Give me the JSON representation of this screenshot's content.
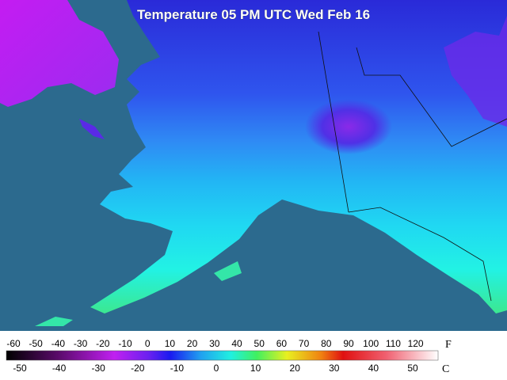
{
  "title": "Temperature 05 PM UTC Wed Feb 16",
  "legend": {
    "fahrenheit": {
      "unit": "F",
      "labels": [
        -60,
        -50,
        -40,
        -30,
        -20,
        -10,
        0,
        10,
        20,
        30,
        40,
        50,
        60,
        70,
        80,
        90,
        100,
        110,
        120
      ]
    },
    "celsius": {
      "unit": "C",
      "labels": [
        -50,
        -40,
        -30,
        -20,
        -10,
        0,
        10,
        20,
        30,
        40,
        50
      ]
    }
  }
}
